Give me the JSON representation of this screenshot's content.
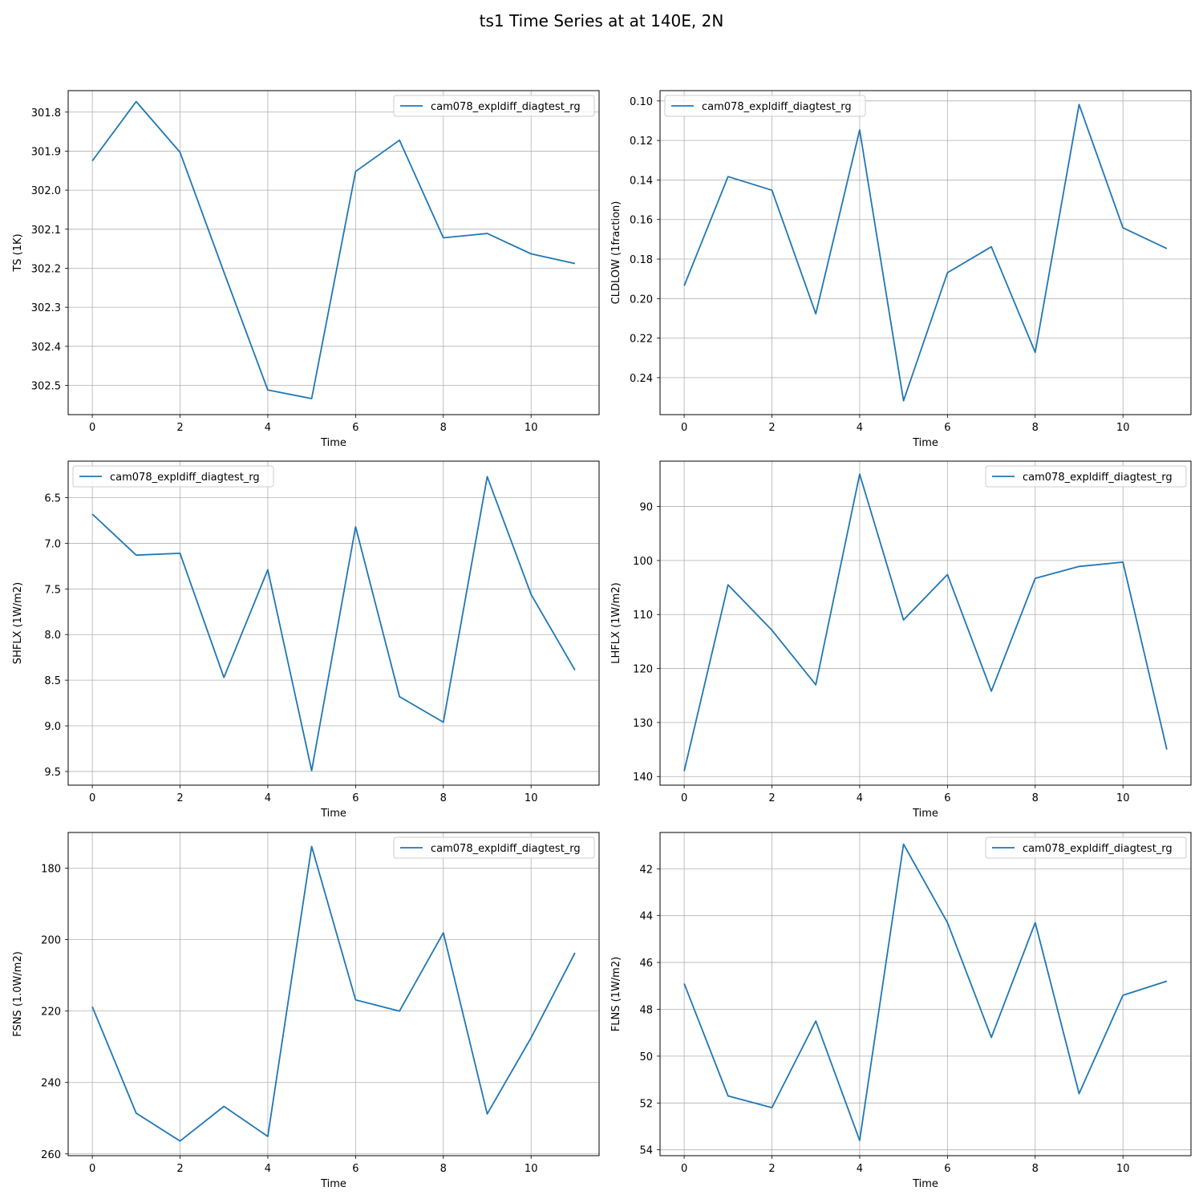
{
  "figure": {
    "title": "ts1 Time Series at at 140E, 2N"
  },
  "chart_data": [
    {
      "type": "line",
      "xlabel": "Time",
      "ylabel": "TS (1K)",
      "y_inverted": true,
      "grid": true,
      "legend_position": "top-right",
      "xlim": [
        -0.55,
        11.55
      ],
      "ylim": [
        302.575,
        301.745
      ],
      "x_ticks": [
        0,
        2,
        4,
        6,
        8,
        10
      ],
      "y_ticks": [
        301.8,
        301.9,
        302.0,
        302.1,
        302.2,
        302.3,
        302.4,
        302.5
      ],
      "y_tick_labels": [
        "301.8",
        "301.9",
        "302.0",
        "302.1",
        "302.2",
        "302.3",
        "302.4",
        "302.5"
      ],
      "series": [
        {
          "name": "cam078_expldiff_diagtest_rg",
          "x": [
            0,
            1,
            2,
            3,
            4,
            5,
            6,
            7,
            8,
            9,
            10,
            11
          ],
          "y": [
            301.925,
            301.773,
            301.903,
            302.21,
            302.512,
            302.534,
            301.952,
            301.872,
            302.122,
            302.111,
            302.163,
            302.188
          ]
        }
      ]
    },
    {
      "type": "line",
      "xlabel": "Time",
      "ylabel": "CLDLOW (1fraction)",
      "y_inverted": true,
      "grid": true,
      "legend_position": "top-left",
      "xlim": [
        -0.55,
        11.55
      ],
      "ylim": [
        0.2587,
        0.0948
      ],
      "x_ticks": [
        0,
        2,
        4,
        6,
        8,
        10
      ],
      "y_ticks": [
        0.1,
        0.12,
        0.14,
        0.16,
        0.18,
        0.2,
        0.22,
        0.24
      ],
      "y_tick_labels": [
        "0.10",
        "0.12",
        "0.14",
        "0.16",
        "0.18",
        "0.20",
        "0.22",
        "0.24"
      ],
      "series": [
        {
          "name": "cam078_expldiff_diagtest_rg",
          "x": [
            0,
            1,
            2,
            3,
            4,
            5,
            6,
            7,
            8,
            9,
            10,
            11
          ],
          "y": [
            0.1935,
            0.1383,
            0.1452,
            0.2077,
            0.1147,
            0.2517,
            0.1869,
            0.1738,
            0.2272,
            0.1018,
            0.1642,
            0.1747
          ]
        }
      ]
    },
    {
      "type": "line",
      "xlabel": "Time",
      "ylabel": "SHFLX (1W/m2)",
      "y_inverted": true,
      "grid": true,
      "legend_position": "top-left",
      "xlim": [
        -0.55,
        11.55
      ],
      "ylim": [
        9.65,
        6.1
      ],
      "x_ticks": [
        0,
        2,
        4,
        6,
        8,
        10
      ],
      "y_ticks": [
        6.5,
        7.0,
        7.5,
        8.0,
        8.5,
        9.0,
        9.5
      ],
      "y_tick_labels": [
        "6.5",
        "7.0",
        "7.5",
        "8.0",
        "8.5",
        "9.0",
        "9.5"
      ],
      "series": [
        {
          "name": "cam078_expldiff_diagtest_rg",
          "x": [
            0,
            1,
            2,
            3,
            4,
            5,
            6,
            7,
            8,
            9,
            10,
            11
          ],
          "y": [
            6.68,
            7.13,
            7.11,
            8.47,
            7.29,
            9.49,
            6.82,
            8.68,
            8.96,
            6.27,
            7.56,
            8.39
          ]
        }
      ]
    },
    {
      "type": "line",
      "xlabel": "Time",
      "ylabel": "LHFLX (1W/m2)",
      "y_inverted": true,
      "grid": true,
      "legend_position": "top-right",
      "xlim": [
        -0.55,
        11.55
      ],
      "ylim": [
        141.6,
        81.6
      ],
      "x_ticks": [
        0,
        2,
        4,
        6,
        8,
        10
      ],
      "y_ticks": [
        90,
        100,
        110,
        120,
        130,
        140
      ],
      "y_tick_labels": [
        "90",
        "100",
        "110",
        "120",
        "130",
        "140"
      ],
      "series": [
        {
          "name": "cam078_expldiff_diagtest_rg",
          "x": [
            0,
            1,
            2,
            3,
            4,
            5,
            6,
            7,
            8,
            9,
            10,
            11
          ],
          "y": [
            139.0,
            104.5,
            112.9,
            123.0,
            84.0,
            111.0,
            102.6,
            124.2,
            103.3,
            101.1,
            100.3,
            135.0
          ]
        }
      ]
    },
    {
      "type": "line",
      "xlabel": "Time",
      "ylabel": "FSNS (1.0W/m2)",
      "y_inverted": true,
      "grid": true,
      "legend_position": "top-right",
      "xlim": [
        -0.55,
        11.55
      ],
      "ylim": [
        260.5,
        170.0
      ],
      "x_ticks": [
        0,
        2,
        4,
        6,
        8,
        10
      ],
      "y_ticks": [
        180,
        200,
        220,
        240,
        260
      ],
      "y_tick_labels": [
        "180",
        "200",
        "220",
        "240",
        "260"
      ],
      "series": [
        {
          "name": "cam078_expldiff_diagtest_rg",
          "x": [
            0,
            1,
            2,
            3,
            4,
            5,
            6,
            7,
            8,
            9,
            10,
            11
          ],
          "y": [
            218.8,
            248.6,
            256.4,
            246.7,
            255.1,
            173.9,
            216.9,
            220.0,
            198.1,
            248.8,
            227.5,
            203.7
          ]
        }
      ]
    },
    {
      "type": "line",
      "xlabel": "Time",
      "ylabel": "FLNS (1W/m2)",
      "y_inverted": true,
      "grid": true,
      "legend_position": "top-right",
      "xlim": [
        -0.55,
        11.55
      ],
      "ylim": [
        54.25,
        40.45
      ],
      "x_ticks": [
        0,
        2,
        4,
        6,
        8,
        10
      ],
      "y_ticks": [
        42,
        44,
        46,
        48,
        50,
        52,
        54
      ],
      "y_tick_labels": [
        "42",
        "44",
        "46",
        "48",
        "50",
        "52",
        "54"
      ],
      "series": [
        {
          "name": "cam078_expldiff_diagtest_rg",
          "x": [
            0,
            1,
            2,
            3,
            4,
            5,
            6,
            7,
            8,
            9,
            10,
            11
          ],
          "y": [
            46.9,
            51.7,
            52.2,
            48.5,
            53.6,
            40.95,
            44.3,
            49.2,
            44.3,
            51.6,
            47.4,
            46.8
          ]
        }
      ]
    }
  ]
}
